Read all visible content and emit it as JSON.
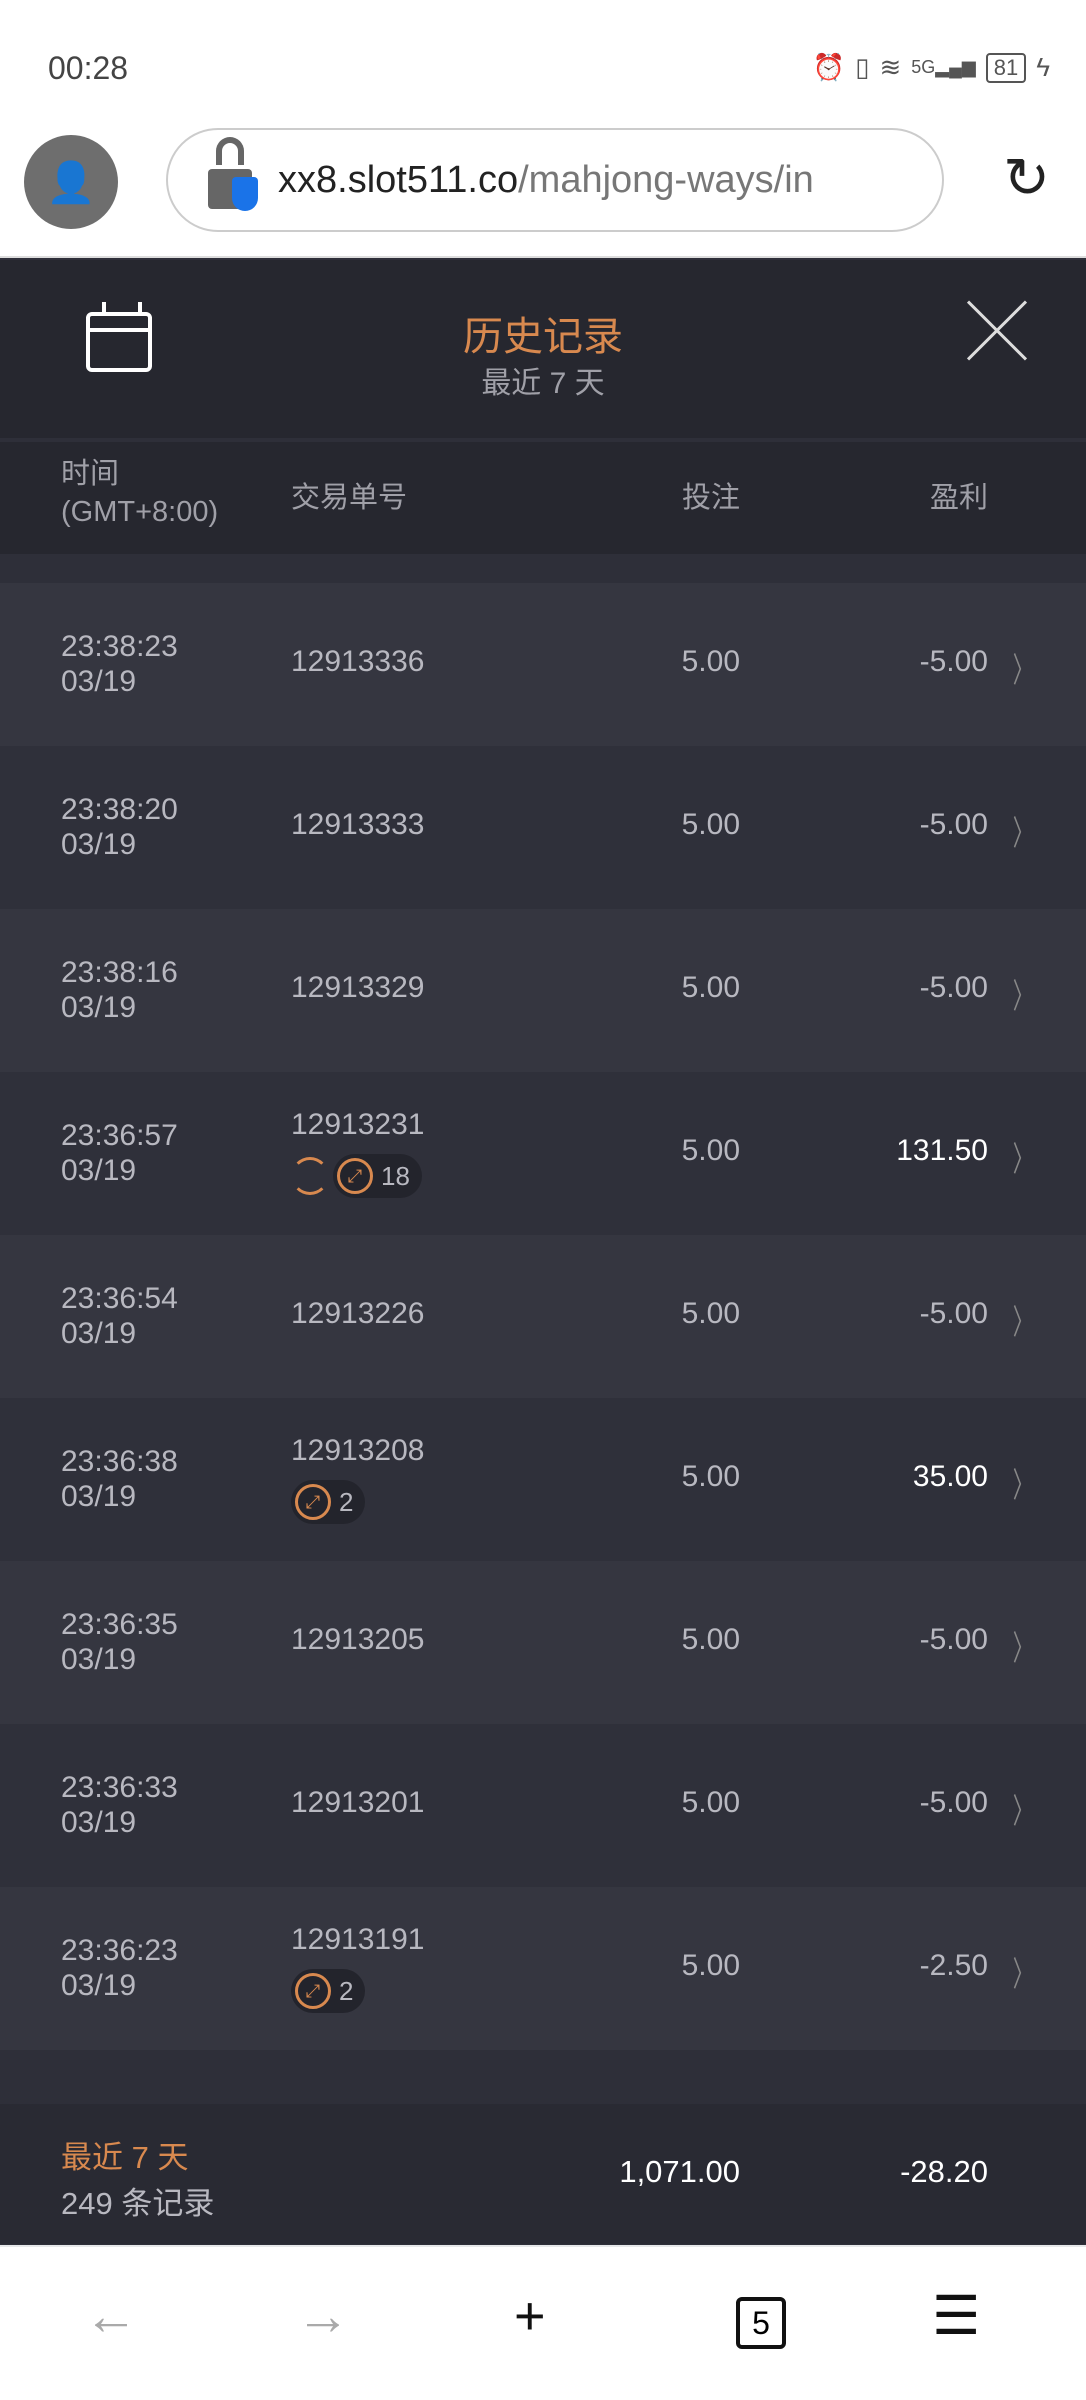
{
  "status_bar": {
    "time": "00:28",
    "battery": "81",
    "network": "5G"
  },
  "browser": {
    "url_host": "xx8.slot511.co",
    "url_path": "/mahjong-ways/in",
    "tab_count": "5"
  },
  "header": {
    "title": "历史记录",
    "subtitle": "最近 7 天"
  },
  "columns": {
    "time": "时间",
    "timezone": "(GMT+8:00)",
    "order": "交易单号",
    "bet": "投注",
    "profit": "盈利"
  },
  "rows": [
    {
      "time": "23:38:23",
      "date": "03/19",
      "id": "12913336",
      "bet": "5.00",
      "profit": "-5.00"
    },
    {
      "time": "23:38:20",
      "date": "03/19",
      "id": "12913333",
      "bet": "5.00",
      "profit": "-5.00"
    },
    {
      "time": "23:38:16",
      "date": "03/19",
      "id": "12913329",
      "bet": "5.00",
      "profit": "-5.00"
    },
    {
      "time": "23:36:57",
      "date": "03/19",
      "id": "12913231",
      "bet": "5.00",
      "profit": "131.50",
      "respin": true,
      "free_spins": "18"
    },
    {
      "time": "23:36:54",
      "date": "03/19",
      "id": "12913226",
      "bet": "5.00",
      "profit": "-5.00"
    },
    {
      "time": "23:36:38",
      "date": "03/19",
      "id": "12913208",
      "bet": "5.00",
      "profit": "35.00",
      "free_spins": "2"
    },
    {
      "time": "23:36:35",
      "date": "03/19",
      "id": "12913205",
      "bet": "5.00",
      "profit": "-5.00"
    },
    {
      "time": "23:36:33",
      "date": "03/19",
      "id": "12913201",
      "bet": "5.00",
      "profit": "-5.00"
    },
    {
      "time": "23:36:23",
      "date": "03/19",
      "id": "12913191",
      "bet": "5.00",
      "profit": "-2.50",
      "free_spins": "2"
    }
  ],
  "footer": {
    "period": "最近 7 天",
    "count": "249 条记录",
    "total_bet": "1,071.00",
    "total_profit": "-28.20"
  },
  "colors": {
    "accent": "#d8894f",
    "background": "#2e2f39",
    "header": "#26272f"
  }
}
